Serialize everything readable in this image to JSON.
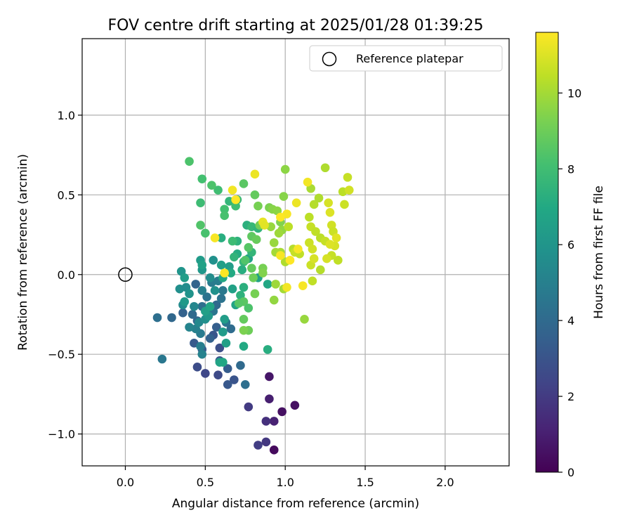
{
  "chart_data": {
    "type": "scatter",
    "title": "FOV centre drift starting at 2025/01/28 01:39:25",
    "xlabel": "Angular distance from reference (arcmin)",
    "ylabel": "Rotation from reference (arcmin)",
    "xlim": [
      -0.27,
      2.4
    ],
    "ylim": [
      -1.2,
      1.48
    ],
    "xticks": [
      0.0,
      0.5,
      1.0,
      1.5,
      2.0
    ],
    "xtick_labels": [
      "0.0",
      "0.5",
      "1.0",
      "1.5",
      "2.0"
    ],
    "yticks": [
      -1.0,
      -0.5,
      0.0,
      0.5,
      1.0
    ],
    "ytick_labels": [
      "−1.0",
      "−0.5",
      "0.0",
      "0.5",
      "1.0"
    ],
    "grid": true,
    "legend": {
      "placement": "top-right",
      "entries": [
        "Reference platepar"
      ]
    },
    "reference_point": {
      "label": "Reference platepar",
      "x": 0.0,
      "y": 0.0
    },
    "colorbar": {
      "label": "Hours from first FF file",
      "colormap": "viridis",
      "range": [
        0,
        11.6
      ],
      "ticks": [
        0,
        2,
        4,
        6,
        8,
        10
      ],
      "tick_labels": [
        "0",
        "2",
        "4",
        "6",
        "8",
        "10"
      ]
    },
    "points": [
      {
        "x": 0.93,
        "y": -1.1,
        "h": 0.3
      },
      {
        "x": 0.98,
        "y": -0.86,
        "h": 0.5
      },
      {
        "x": 1.06,
        "y": -0.82,
        "h": 0.5
      },
      {
        "x": 0.9,
        "y": -0.64,
        "h": 0.7
      },
      {
        "x": 0.9,
        "y": -0.78,
        "h": 1.0
      },
      {
        "x": 0.93,
        "y": -0.92,
        "h": 1.1
      },
      {
        "x": 0.88,
        "y": -0.92,
        "h": 1.6
      },
      {
        "x": 0.88,
        "y": -1.05,
        "h": 1.9
      },
      {
        "x": 0.83,
        "y": -1.07,
        "h": 2.1
      },
      {
        "x": 0.77,
        "y": -0.83,
        "h": 2.0
      },
      {
        "x": 0.5,
        "y": -0.62,
        "h": 2.5
      },
      {
        "x": 0.45,
        "y": -0.58,
        "h": 2.7
      },
      {
        "x": 0.58,
        "y": -0.63,
        "h": 2.6
      },
      {
        "x": 0.68,
        "y": -0.66,
        "h": 3.0
      },
      {
        "x": 0.64,
        "y": -0.69,
        "h": 3.2
      },
      {
        "x": 0.64,
        "y": -0.59,
        "h": 3.4
      },
      {
        "x": 0.59,
        "y": -0.46,
        "h": 2.8
      },
      {
        "x": 0.59,
        "y": -0.54,
        "h": 3.0
      },
      {
        "x": 0.55,
        "y": -0.38,
        "h": 3.1
      },
      {
        "x": 0.43,
        "y": -0.43,
        "h": 3.3
      },
      {
        "x": 0.48,
        "y": -0.47,
        "h": 3.4
      },
      {
        "x": 0.72,
        "y": -0.57,
        "h": 4.0
      },
      {
        "x": 0.75,
        "y": -0.69,
        "h": 4.2
      },
      {
        "x": 0.53,
        "y": -0.4,
        "h": 3.6
      },
      {
        "x": 0.57,
        "y": -0.33,
        "h": 3.5
      },
      {
        "x": 0.45,
        "y": -0.29,
        "h": 3.8
      },
      {
        "x": 0.42,
        "y": -0.25,
        "h": 4.0
      },
      {
        "x": 0.36,
        "y": -0.24,
        "h": 3.6
      },
      {
        "x": 0.44,
        "y": -0.06,
        "h": 3.7
      },
      {
        "x": 0.29,
        "y": -0.27,
        "h": 3.9
      },
      {
        "x": 0.2,
        "y": -0.27,
        "h": 4.2
      },
      {
        "x": 0.23,
        "y": -0.53,
        "h": 4.6
      },
      {
        "x": 0.48,
        "y": -0.2,
        "h": 4.2
      },
      {
        "x": 0.51,
        "y": -0.14,
        "h": 4.4
      },
      {
        "x": 0.55,
        "y": -0.23,
        "h": 4.5
      },
      {
        "x": 0.57,
        "y": -0.19,
        "h": 4.0
      },
      {
        "x": 0.6,
        "y": -0.15,
        "h": 4.4
      },
      {
        "x": 0.63,
        "y": -0.3,
        "h": 4.5
      },
      {
        "x": 0.66,
        "y": -0.34,
        "h": 4.1
      },
      {
        "x": 0.61,
        "y": -0.1,
        "h": 4.7
      },
      {
        "x": 0.54,
        "y": -0.05,
        "h": 4.8
      },
      {
        "x": 0.58,
        "y": -0.04,
        "h": 4.9
      },
      {
        "x": 0.47,
        "y": -0.37,
        "h": 4.8
      },
      {
        "x": 0.44,
        "y": -0.34,
        "h": 5.0
      },
      {
        "x": 0.4,
        "y": -0.33,
        "h": 5.2
      },
      {
        "x": 0.48,
        "y": -0.5,
        "h": 5.1
      },
      {
        "x": 0.47,
        "y": -0.45,
        "h": 4.9
      },
      {
        "x": 0.48,
        "y": -0.1,
        "h": 5.0
      },
      {
        "x": 0.43,
        "y": -0.2,
        "h": 5.3
      },
      {
        "x": 0.36,
        "y": -0.19,
        "h": 5.5
      },
      {
        "x": 0.34,
        "y": -0.09,
        "h": 5.7
      },
      {
        "x": 0.38,
        "y": -0.08,
        "h": 5.6
      },
      {
        "x": 0.4,
        "y": -0.12,
        "h": 5.9
      },
      {
        "x": 0.46,
        "y": -0.3,
        "h": 5.4
      },
      {
        "x": 0.5,
        "y": -0.28,
        "h": 5.7
      },
      {
        "x": 0.52,
        "y": -0.26,
        "h": 6.1
      },
      {
        "x": 0.56,
        "y": -0.1,
        "h": 5.8
      },
      {
        "x": 0.53,
        "y": -0.02,
        "h": 5.6
      },
      {
        "x": 0.55,
        "y": 0.09,
        "h": 5.8
      },
      {
        "x": 0.48,
        "y": 0.03,
        "h": 6.1
      },
      {
        "x": 0.47,
        "y": 0.09,
        "h": 6.3
      },
      {
        "x": 0.37,
        "y": -0.17,
        "h": 6.2
      },
      {
        "x": 0.35,
        "y": 0.02,
        "h": 6.0
      },
      {
        "x": 0.37,
        "y": -0.02,
        "h": 6.4
      },
      {
        "x": 0.48,
        "y": 0.06,
        "h": 6.6
      },
      {
        "x": 0.5,
        "y": -0.23,
        "h": 6.5
      },
      {
        "x": 0.53,
        "y": -0.2,
        "h": 6.8
      },
      {
        "x": 0.62,
        "y": -0.28,
        "h": 6.4
      },
      {
        "x": 0.61,
        "y": -0.36,
        "h": 6.3
      },
      {
        "x": 0.63,
        "y": -0.43,
        "h": 6.5
      },
      {
        "x": 0.59,
        "y": -0.55,
        "h": 6.7
      },
      {
        "x": 0.61,
        "y": -0.55,
        "h": 6.9
      },
      {
        "x": 0.67,
        "y": -0.09,
        "h": 6.6
      },
      {
        "x": 0.69,
        "y": -0.19,
        "h": 6.7
      },
      {
        "x": 0.6,
        "y": 0.06,
        "h": 6.5
      },
      {
        "x": 0.65,
        "y": 0.05,
        "h": 6.4
      },
      {
        "x": 0.61,
        "y": -0.02,
        "h": 6.9
      },
      {
        "x": 0.66,
        "y": 0.01,
        "h": 7.0
      },
      {
        "x": 0.73,
        "y": 0.03,
        "h": 7.2
      },
      {
        "x": 0.74,
        "y": -0.08,
        "h": 7.3
      },
      {
        "x": 0.72,
        "y": -0.13,
        "h": 7.4
      },
      {
        "x": 0.7,
        "y": 0.13,
        "h": 7.1
      },
      {
        "x": 0.77,
        "y": 0.1,
        "h": 6.7
      },
      {
        "x": 0.83,
        "y": -0.02,
        "h": 6.6
      },
      {
        "x": 0.89,
        "y": -0.06,
        "h": 6.9
      },
      {
        "x": 0.89,
        "y": -0.47,
        "h": 7.2
      },
      {
        "x": 0.74,
        "y": -0.45,
        "h": 7.0
      },
      {
        "x": 0.68,
        "y": 0.11,
        "h": 7.5
      },
      {
        "x": 0.74,
        "y": 0.08,
        "h": 7.6
      },
      {
        "x": 0.7,
        "y": 0.21,
        "h": 7.4
      },
      {
        "x": 0.76,
        "y": 0.31,
        "h": 7.3
      },
      {
        "x": 0.79,
        "y": 0.3,
        "h": 7.7
      },
      {
        "x": 0.83,
        "y": 0.29,
        "h": 7.5
      },
      {
        "x": 0.79,
        "y": 0.14,
        "h": 7.6
      },
      {
        "x": 0.6,
        "y": 0.23,
        "h": 7.2
      },
      {
        "x": 0.67,
        "y": 0.21,
        "h": 7.9
      },
      {
        "x": 0.7,
        "y": 0.47,
        "h": 7.7
      },
      {
        "x": 0.65,
        "y": 0.46,
        "h": 7.6
      },
      {
        "x": 0.69,
        "y": 0.43,
        "h": 8.0
      },
      {
        "x": 0.62,
        "y": 0.41,
        "h": 8.1
      },
      {
        "x": 0.62,
        "y": 0.37,
        "h": 8.2
      },
      {
        "x": 0.58,
        "y": 0.53,
        "h": 8.0
      },
      {
        "x": 0.54,
        "y": 0.56,
        "h": 8.3
      },
      {
        "x": 0.48,
        "y": 0.6,
        "h": 8.1
      },
      {
        "x": 0.47,
        "y": 0.45,
        "h": 7.9
      },
      {
        "x": 0.47,
        "y": 0.31,
        "h": 8.4
      },
      {
        "x": 0.5,
        "y": 0.26,
        "h": 8.2
      },
      {
        "x": 0.4,
        "y": 0.71,
        "h": 8.3
      },
      {
        "x": 0.74,
        "y": 0.57,
        "h": 8.6
      },
      {
        "x": 0.75,
        "y": 0.09,
        "h": 8.4
      },
      {
        "x": 0.79,
        "y": 0.04,
        "h": 8.8
      },
      {
        "x": 0.77,
        "y": 0.17,
        "h": 8.5
      },
      {
        "x": 0.79,
        "y": 0.24,
        "h": 8.7
      },
      {
        "x": 0.82,
        "y": 0.22,
        "h": 8.9
      },
      {
        "x": 0.84,
        "y": 0.31,
        "h": 9.1
      },
      {
        "x": 0.83,
        "y": 0.43,
        "h": 9.2
      },
      {
        "x": 0.81,
        "y": 0.5,
        "h": 8.8
      },
      {
        "x": 0.8,
        "y": -0.02,
        "h": 9.0
      },
      {
        "x": 0.81,
        "y": -0.12,
        "h": 9.2
      },
      {
        "x": 0.74,
        "y": -0.17,
        "h": 8.6
      },
      {
        "x": 0.77,
        "y": -0.21,
        "h": 8.3
      },
      {
        "x": 0.71,
        "y": -0.18,
        "h": 8.5
      },
      {
        "x": 0.74,
        "y": -0.28,
        "h": 8.8
      },
      {
        "x": 0.77,
        "y": -0.35,
        "h": 9.0
      },
      {
        "x": 0.74,
        "y": -0.35,
        "h": 9.3
      },
      {
        "x": 0.86,
        "y": 0.04,
        "h": 9.2
      },
      {
        "x": 0.86,
        "y": 0.01,
        "h": 9.4
      },
      {
        "x": 0.9,
        "y": 0.42,
        "h": 9.3
      },
      {
        "x": 0.92,
        "y": 0.41,
        "h": 9.5
      },
      {
        "x": 0.95,
        "y": 0.4,
        "h": 9.6
      },
      {
        "x": 0.97,
        "y": 0.33,
        "h": 9.4
      },
      {
        "x": 0.98,
        "y": 0.28,
        "h": 9.7
      },
      {
        "x": 0.91,
        "y": 0.3,
        "h": 9.8
      },
      {
        "x": 0.99,
        "y": 0.49,
        "h": 9.5
      },
      {
        "x": 1.0,
        "y": 0.66,
        "h": 9.6
      },
      {
        "x": 0.96,
        "y": 0.26,
        "h": 9.9
      },
      {
        "x": 0.93,
        "y": 0.2,
        "h": 9.8
      },
      {
        "x": 0.94,
        "y": 0.14,
        "h": 10.0
      },
      {
        "x": 0.97,
        "y": 0.14,
        "h": 10.1
      },
      {
        "x": 0.94,
        "y": -0.06,
        "h": 9.9
      },
      {
        "x": 0.99,
        "y": -0.09,
        "h": 10.0
      },
      {
        "x": 0.93,
        "y": -0.16,
        "h": 9.7
      },
      {
        "x": 1.0,
        "y": 0.08,
        "h": 10.2
      },
      {
        "x": 1.05,
        "y": 0.16,
        "h": 10.3
      },
      {
        "x": 1.02,
        "y": 0.3,
        "h": 10.4
      },
      {
        "x": 1.06,
        "y": 0.14,
        "h": 10.6
      },
      {
        "x": 1.09,
        "y": 0.13,
        "h": 10.5
      },
      {
        "x": 1.12,
        "y": -0.28,
        "h": 9.8
      },
      {
        "x": 1.15,
        "y": 0.36,
        "h": 10.4
      },
      {
        "x": 1.16,
        "y": 0.3,
        "h": 10.6
      },
      {
        "x": 1.15,
        "y": 0.2,
        "h": 10.7
      },
      {
        "x": 1.17,
        "y": 0.16,
        "h": 10.8
      },
      {
        "x": 1.16,
        "y": 0.54,
        "h": 10.1
      },
      {
        "x": 1.18,
        "y": 0.44,
        "h": 10.3
      },
      {
        "x": 1.21,
        "y": 0.48,
        "h": 10.2
      },
      {
        "x": 1.19,
        "y": 0.27,
        "h": 10.5
      },
      {
        "x": 1.22,
        "y": 0.23,
        "h": 10.4
      },
      {
        "x": 1.25,
        "y": 0.21,
        "h": 10.6
      },
      {
        "x": 1.25,
        "y": 0.67,
        "h": 10.2
      },
      {
        "x": 1.27,
        "y": 0.45,
        "h": 10.9
      },
      {
        "x": 1.28,
        "y": 0.39,
        "h": 11.0
      },
      {
        "x": 1.29,
        "y": 0.31,
        "h": 10.8
      },
      {
        "x": 1.3,
        "y": 0.27,
        "h": 10.7
      },
      {
        "x": 1.31,
        "y": 0.18,
        "h": 10.9
      },
      {
        "x": 1.28,
        "y": 0.19,
        "h": 11.0
      },
      {
        "x": 1.32,
        "y": 0.23,
        "h": 11.1
      },
      {
        "x": 1.29,
        "y": 0.12,
        "h": 10.6
      },
      {
        "x": 1.26,
        "y": 0.1,
        "h": 10.9
      },
      {
        "x": 1.22,
        "y": 0.03,
        "h": 10.3
      },
      {
        "x": 1.17,
        "y": -0.04,
        "h": 10.5
      },
      {
        "x": 1.16,
        "y": 0.06,
        "h": 10.7
      },
      {
        "x": 1.18,
        "y": 0.1,
        "h": 10.9
      },
      {
        "x": 1.33,
        "y": 0.09,
        "h": 10.5
      },
      {
        "x": 1.36,
        "y": 0.52,
        "h": 10.4
      },
      {
        "x": 1.37,
        "y": 0.44,
        "h": 10.7
      },
      {
        "x": 1.39,
        "y": 0.61,
        "h": 10.6
      },
      {
        "x": 1.4,
        "y": 0.53,
        "h": 10.8
      },
      {
        "x": 1.14,
        "y": 0.58,
        "h": 11.4
      },
      {
        "x": 1.07,
        "y": 0.45,
        "h": 11.3
      },
      {
        "x": 1.01,
        "y": 0.38,
        "h": 11.5
      },
      {
        "x": 0.97,
        "y": 0.36,
        "h": 11.6
      },
      {
        "x": 1.11,
        "y": -0.07,
        "h": 11.5
      },
      {
        "x": 1.03,
        "y": 0.09,
        "h": 11.6
      },
      {
        "x": 0.97,
        "y": 0.12,
        "h": 11.5
      },
      {
        "x": 1.01,
        "y": -0.08,
        "h": 11.4
      },
      {
        "x": 1.08,
        "y": 0.16,
        "h": 11.5
      },
      {
        "x": 0.86,
        "y": 0.33,
        "h": 11.2
      },
      {
        "x": 0.81,
        "y": 0.63,
        "h": 11.3
      },
      {
        "x": 0.67,
        "y": 0.53,
        "h": 11.4
      },
      {
        "x": 0.69,
        "y": 0.47,
        "h": 11.6
      },
      {
        "x": 0.56,
        "y": 0.23,
        "h": 11.5
      },
      {
        "x": 0.62,
        "y": 0.01,
        "h": 11.6
      },
      {
        "x": 0.87,
        "y": 0.31,
        "h": 11.1
      }
    ]
  }
}
